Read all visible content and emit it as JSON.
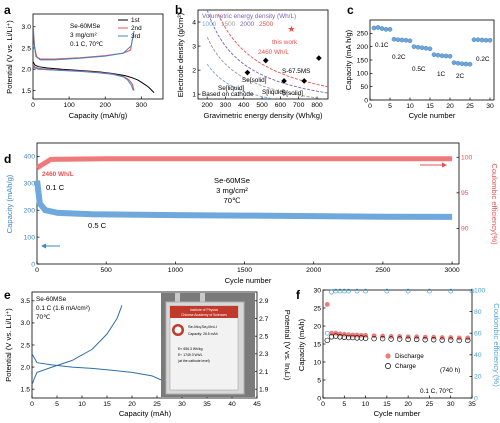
{
  "colors": {
    "black": "#000000",
    "red": "#e8504f",
    "pink": "#f07a7a",
    "blue": "#3f86c8",
    "lightblue": "#6fa8dc",
    "purple": "#7b63b3",
    "gray": "#9a9a9a",
    "cyan": "#4aa3d8"
  },
  "panels": [
    {
      "letter": "a",
      "sample": "Se-60MSe",
      "loading": "3 mg/cm²",
      "cond": "0.1 C, 70℃",
      "xlabel": "Capacity (mAh/g)",
      "ylabel": "Potential (V vs. Li/Li⁺)",
      "xticks": [
        "0",
        "100",
        "200",
        "300"
      ],
      "yticks": [
        "1.5",
        "2.0",
        "2.5",
        "3.0"
      ],
      "legend": [
        "1st",
        "2nd",
        "3rd"
      ]
    },
    {
      "letter": "b",
      "title": "Volumetric energy density (Wh/L)",
      "contour_labels": [
        "1000",
        "1500",
        "2000",
        "2500"
      ],
      "xlabel": "Gravimetric energy density (Wh/kg)",
      "ylabel": "Electrode density (g/cm³)",
      "xticks": [
        "200",
        "300",
        "400",
        "500",
        "600",
        "700",
        "800"
      ],
      "yticks": [
        "1",
        "2",
        "3",
        "4"
      ],
      "annotations": [
        "this work",
        "2460 Wh/L",
        "S-67.5MS",
        "Se[liquid]",
        "Se[solid]",
        "S[liquid]",
        "S[solid]",
        "Based on cathode"
      ]
    },
    {
      "letter": "c",
      "xlabel": "Cycle number",
      "ylabel": "Capacity (mA h/g)",
      "xticks": [
        "0",
        "5",
        "10",
        "15",
        "20",
        "25",
        "30"
      ],
      "yticks": [
        "0",
        "50",
        "100",
        "150",
        "200",
        "250"
      ],
      "rate_labels": [
        "0.1C",
        "0.2C",
        "0.5C",
        "1C",
        "2C",
        "0.2C"
      ]
    },
    {
      "letter": "d",
      "sample": "Se-60MSe",
      "loading": "3 mg/cm²",
      "temp": "70℃",
      "energy": "2460 Wh/L",
      "rate1": "0.1 C",
      "rate2": "0.5 C",
      "xlabel": "Cycle number",
      "ylabel": "Capacity (mAh/g)",
      "ylabel2": "Coulombic efficiency(%)",
      "xticks": [
        "0",
        "500",
        "1000",
        "1500",
        "2000",
        "2500",
        "3000"
      ],
      "yticks": [
        "0",
        "100",
        "200",
        "300",
        "400"
      ],
      "y2ticks": [
        "90",
        "95",
        "100"
      ]
    },
    {
      "letter": "e",
      "sample": "Se-60MSe",
      "cond1": "0.1 C (1.6 mA/cm²)",
      "cond2": "70℃",
      "xlabel": "Capacity (mAh)",
      "ylabel": "Potential (V vs. Li/Li⁺)",
      "ylabel2": "Potential (V vs. InₓLi)",
      "xticks": [
        "0",
        "5",
        "10",
        "15",
        "20",
        "25",
        "30",
        "35",
        "40",
        "45"
      ],
      "yticks": [
        "1.5",
        "2.0",
        "2.5",
        "3.0",
        "3.5"
      ],
      "y2ticks": [
        "1.9",
        "2.1",
        "2.3",
        "2.5",
        "2.7",
        "2.9"
      ],
      "photo_lines": [
        "Institute of Physics",
        "Chinese Academy of Sciences",
        "Se-Mo₆Se₈//InLi",
        "Capacity: 26.5 mAh",
        "Eᵍ: 656.3 Wh/kg",
        "Eᵛ: 1749.3 Wh/L",
        "(at the cathode level)"
      ]
    },
    {
      "letter": "f",
      "xlabel": "Cycle number",
      "ylabel": "Capacity (mAh)",
      "ylabel2": "Coulombic efficiency (%)",
      "xticks": [
        "0",
        "5",
        "10",
        "15",
        "20",
        "25",
        "30",
        "35"
      ],
      "yticks": [
        "0",
        "5",
        "10",
        "15",
        "20",
        "25",
        "30"
      ],
      "y2ticks": [
        "0",
        "20",
        "40",
        "60",
        "80",
        "100"
      ],
      "legend": [
        "Discharge",
        "Charge"
      ],
      "note": "(740 h)",
      "cond": "0.1 C, 70℃"
    }
  ],
  "chart_data": [
    {
      "type": "line",
      "panel": "a",
      "series": [
        {
          "name": "1st",
          "x": [
            0,
            5,
            15,
            40,
            80,
            130,
            180,
            220,
            255,
            275,
            290,
            305,
            320,
            335
          ],
          "y": [
            2.18,
            2.1,
            2.06,
            2.03,
            2.0,
            1.97,
            1.94,
            1.9,
            1.85,
            1.8,
            1.75,
            1.67,
            1.58,
            1.45
          ]
        },
        {
          "name": "2nd",
          "x": [
            0,
            5,
            15,
            40,
            80,
            130,
            180,
            220,
            250,
            265,
            275,
            280
          ],
          "y": [
            2.1,
            2.05,
            2.02,
            2.0,
            1.98,
            1.96,
            1.93,
            1.89,
            1.83,
            1.76,
            1.65,
            1.5
          ]
        },
        {
          "name": "3rd",
          "x": [
            0,
            5,
            15,
            40,
            80,
            130,
            180,
            220,
            250,
            262,
            272,
            278
          ],
          "y": [
            2.07,
            2.03,
            2.0,
            1.99,
            1.97,
            1.95,
            1.92,
            1.88,
            1.82,
            1.75,
            1.63,
            1.5
          ]
        }
      ],
      "charge_curves": [
        {
          "x": [
            275,
            270,
            250,
            200,
            130,
            60,
            20,
            10,
            5,
            2
          ],
          "y": [
            2.7,
            2.45,
            2.38,
            2.32,
            2.27,
            2.24,
            2.24,
            2.3,
            2.5,
            2.82
          ]
        },
        {
          "x": [
            280,
            272,
            250,
            200,
            130,
            60,
            20,
            8,
            3,
            1
          ],
          "y": [
            2.9,
            2.55,
            2.38,
            2.31,
            2.26,
            2.22,
            2.22,
            2.3,
            2.6,
            3.0
          ]
        }
      ],
      "xlim": [
        0,
        360
      ],
      "ylim": [
        1.3,
        3.3
      ]
    },
    {
      "type": "scatter",
      "panel": "b",
      "points": [
        {
          "label": "this work",
          "x": 660,
          "y": 3.7
        },
        {
          "label": "S-67.5MS",
          "x": 810,
          "y": 2.5
        },
        {
          "label": "Se[solid]",
          "x": 520,
          "y": 2.4
        },
        {
          "label": "Se[liquid]",
          "x": 420,
          "y": 1.9
        },
        {
          "label": "S[liquid]",
          "x": 620,
          "y": 1.55
        },
        {
          "label": "S[solid]",
          "x": 730,
          "y": 1.55
        }
      ],
      "contours": [
        1000,
        1500,
        2000,
        2500
      ],
      "xlim": [
        150,
        860
      ],
      "ylim": [
        0.8,
        4.5
      ]
    },
    {
      "type": "scatter",
      "panel": "c",
      "x": [
        1,
        2,
        3,
        4,
        5,
        6,
        7,
        8,
        9,
        10,
        11,
        12,
        13,
        14,
        15,
        16,
        17,
        18,
        19,
        20,
        21,
        22,
        23,
        24,
        25,
        26,
        27,
        28,
        29,
        30
      ],
      "y": [
        270,
        272,
        268,
        265,
        265,
        228,
        226,
        225,
        224,
        222,
        200,
        198,
        196,
        194,
        192,
        170,
        168,
        166,
        165,
        164,
        140,
        138,
        136,
        135,
        134,
        226,
        226,
        225,
        224,
        224
      ],
      "xlim": [
        0,
        31
      ],
      "ylim": [
        0,
        300
      ]
    },
    {
      "type": "line",
      "panel": "d",
      "capacity": {
        "x": [
          1,
          20,
          60,
          150,
          400,
          1000,
          1500,
          2000,
          2500,
          3000
        ],
        "y": [
          310,
          225,
          200,
          190,
          185,
          182,
          180,
          178,
          176,
          175
        ]
      },
      "ce": {
        "x": [
          0,
          100,
          500,
          1000,
          2000,
          3000
        ],
        "y": [
          98.5,
          99.7,
          99.8,
          99.8,
          99.8,
          99.8
        ]
      },
      "xlim": [
        0,
        3050
      ],
      "ylim": [
        0,
        450
      ],
      "y2lim": [
        85,
        102
      ]
    },
    {
      "type": "line",
      "panel": "e",
      "discharge": {
        "x": [
          0,
          1,
          4,
          8,
          12,
          16,
          20,
          24,
          26,
          27
        ],
        "y": [
          2.3,
          2.1,
          2.05,
          2.0,
          1.97,
          1.93,
          1.88,
          1.8,
          1.7,
          1.45
        ]
      },
      "charge": {
        "x": [
          0,
          0.5,
          1,
          4,
          8,
          12,
          15,
          17,
          18
        ],
        "y": [
          1.6,
          1.75,
          1.88,
          2.0,
          2.15,
          2.4,
          2.75,
          3.1,
          3.4
        ]
      },
      "xlim": [
        0,
        45
      ],
      "ylim": [
        1.3,
        3.7
      ]
    },
    {
      "type": "scatter",
      "panel": "f",
      "discharge": {
        "x": [
          1,
          2,
          3,
          4,
          5,
          6,
          7,
          8,
          9,
          10,
          12,
          14,
          16,
          18,
          20,
          22,
          24,
          26,
          28,
          30,
          32,
          34
        ],
        "y": [
          26,
          18,
          18,
          17.8,
          17.7,
          17.6,
          17.5,
          17.5,
          17.4,
          17.4,
          17.3,
          17.2,
          17.1,
          17.1,
          17,
          17,
          16.9,
          16.9,
          16.8,
          16.8,
          16.7,
          16.7
        ]
      },
      "charge": {
        "x": [
          1,
          2,
          3,
          4,
          5,
          6,
          7,
          8,
          9,
          10,
          12,
          14,
          16,
          18,
          20,
          22,
          24,
          26,
          28,
          30,
          32,
          34
        ],
        "y": [
          16,
          17,
          17.2,
          17,
          16.9,
          16.8,
          16.8,
          16.7,
          16.7,
          16.6,
          16.5,
          16.5,
          16.4,
          16.4,
          16.3,
          16.3,
          16.2,
          16.2,
          16.1,
          16.1,
          16,
          16
        ]
      },
      "ce": {
        "x": [
          1,
          2,
          3,
          4,
          5,
          6,
          8,
          10,
          15,
          20,
          25,
          30,
          35
        ],
        "y": [
          60,
          98,
          99,
          99,
          99,
          99,
          99,
          99,
          99,
          99,
          99,
          99,
          99
        ]
      },
      "xlim": [
        0,
        35
      ],
      "ylim": [
        0,
        30
      ],
      "y2lim": [
        0,
        100
      ]
    }
  ]
}
